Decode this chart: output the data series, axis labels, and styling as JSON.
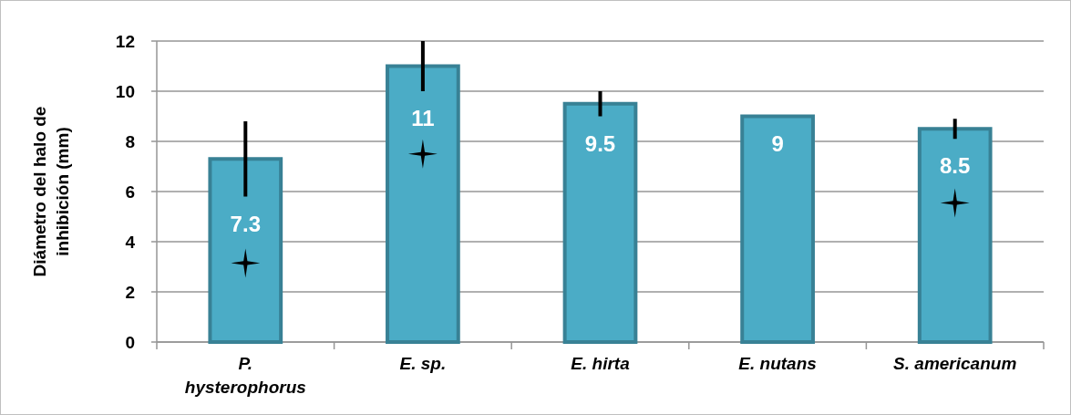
{
  "chart_data": {
    "type": "bar",
    "ylabel": "Diámetro del halo de inhibición (mm)",
    "categories": [
      "P. hysterophorus",
      "E. sp.",
      "E. hirta",
      "E. nutans",
      "S. americanum"
    ],
    "series": [
      {
        "color": "#4bacc6",
        "values": [
          7.3,
          11,
          9.5,
          9,
          8.5
        ],
        "value_labels": [
          "7.3",
          "11",
          "9.5",
          "9",
          "8.5"
        ],
        "errors": [
          1.5,
          1,
          0.5,
          null,
          0.4
        ]
      },
      {
        "type": "scatter",
        "color": "#000000",
        "marker": "star",
        "x": [
          "P. hysterophorus",
          "E. sp.",
          "S. americanum"
        ],
        "values": [
          3.15,
          7.5,
          5.55
        ]
      }
    ],
    "ylim": [
      0,
      12
    ],
    "yticks": [
      0,
      2,
      4,
      6,
      8,
      10,
      12
    ],
    "grid": "y"
  }
}
